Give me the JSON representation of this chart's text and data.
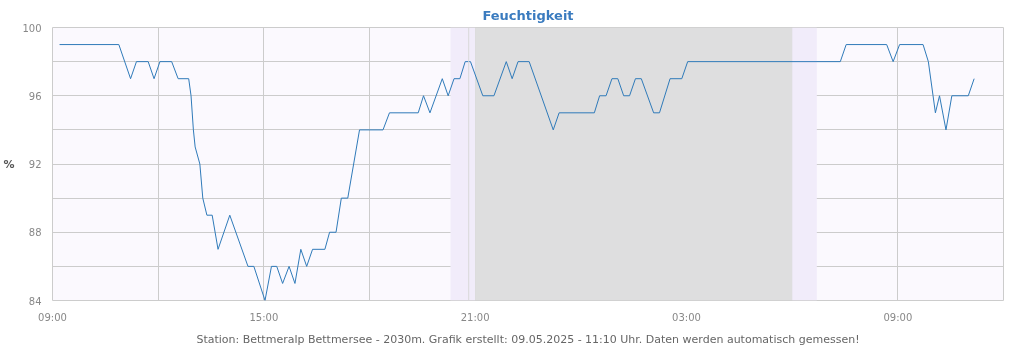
{
  "chart_data": {
    "type": "line",
    "title": "Feuchtigkeit",
    "ylabel": "%",
    "annotations": [
      "Station: Bettmeralp Bettmersee - 2030m. Grafik erstellt: 09.05.2025 - 11:10 Uhr. Daten werden automatisch gemessen!"
    ],
    "series": [
      {
        "color": "#2f7ab9",
        "x": [
          "2025-05-08T09:12",
          "2025-05-08T10:53",
          "2025-05-08T11:13",
          "2025-05-08T11:23",
          "2025-05-08T11:43",
          "2025-05-08T11:53",
          "2025-05-08T12:03",
          "2025-05-08T12:23",
          "2025-05-08T12:34",
          "2025-05-08T12:52",
          "2025-05-08T12:56",
          "2025-05-08T13:00",
          "2025-05-08T13:03",
          "2025-05-08T13:11",
          "2025-05-08T13:16",
          "2025-05-08T13:23",
          "2025-05-08T13:32",
          "2025-05-08T13:42",
          "2025-05-08T14:02",
          "2025-05-08T14:33",
          "2025-05-08T14:43",
          "2025-05-08T15:02",
          "2025-05-08T15:13",
          "2025-05-08T15:22",
          "2025-05-08T15:32",
          "2025-05-08T15:43",
          "2025-05-08T15:53",
          "2025-05-08T16:03",
          "2025-05-08T16:13",
          "2025-05-08T16:23",
          "2025-05-08T16:44",
          "2025-05-08T16:52",
          "2025-05-08T17:03",
          "2025-05-08T17:12",
          "2025-05-08T17:23",
          "2025-05-08T17:33",
          "2025-05-08T17:43",
          "2025-05-08T18:23",
          "2025-05-08T18:34",
          "2025-05-08T19:23",
          "2025-05-08T19:32",
          "2025-05-08T19:43",
          "2025-05-08T20:04",
          "2025-05-08T20:14",
          "2025-05-08T20:24",
          "2025-05-08T20:34",
          "2025-05-08T20:43",
          "2025-05-08T20:52",
          "2025-05-08T21:13",
          "2025-05-08T21:32",
          "2025-05-08T21:53",
          "2025-05-08T22:03",
          "2025-05-08T22:13",
          "2025-05-08T22:32",
          "2025-05-08T23:13",
          "2025-05-08T23:23",
          "2025-05-09T00:23",
          "2025-05-09T00:32",
          "2025-05-09T00:43",
          "2025-05-09T00:53",
          "2025-05-09T01:03",
          "2025-05-09T01:13",
          "2025-05-09T01:23",
          "2025-05-09T01:33",
          "2025-05-09T01:43",
          "2025-05-09T02:04",
          "2025-05-09T02:14",
          "2025-05-09T02:32",
          "2025-05-09T02:52",
          "2025-05-09T03:02",
          "2025-05-09T07:22",
          "2025-05-09T07:32",
          "2025-05-09T08:41",
          "2025-05-09T08:52",
          "2025-05-09T09:03",
          "2025-05-09T09:43",
          "2025-05-09T09:52",
          "2025-05-09T10:00",
          "2025-05-09T10:04",
          "2025-05-09T10:11",
          "2025-05-09T10:22",
          "2025-05-09T10:32",
          "2025-05-09T11:00",
          "2025-05-09T11:10"
        ],
        "values": [
          99,
          99,
          97,
          98,
          98,
          97,
          98,
          98,
          97,
          97,
          96,
          94,
          93,
          92,
          90,
          89,
          89,
          87,
          89,
          86,
          86,
          84,
          86,
          86,
          85,
          86,
          85,
          87,
          86,
          87,
          87,
          88,
          88,
          90,
          90,
          92,
          94,
          94,
          95,
          95,
          96,
          95,
          97,
          96,
          97,
          97,
          98,
          98,
          96,
          96,
          98,
          97,
          98,
          98,
          94,
          95,
          95,
          96,
          96,
          97,
          97,
          96,
          96,
          97,
          97,
          95,
          95,
          97,
          97,
          98,
          98,
          99,
          99,
          98,
          99,
          99,
          98,
          96,
          95,
          96,
          94,
          96,
          96,
          97
        ]
      }
    ],
    "xlim": [
      "2025-05-08T09:00",
      "2025-05-09T12:00"
    ],
    "xticks": [
      {
        "value": "2025-05-08T09:00",
        "label": "09:00"
      },
      {
        "value": "2025-05-08T12:00",
        "label": null
      },
      {
        "value": "2025-05-08T15:00",
        "label": "15:00"
      },
      {
        "value": "2025-05-08T18:00",
        "label": null
      },
      {
        "value": "2025-05-08T21:00",
        "label": "21:00"
      },
      {
        "value": "2025-05-09T00:00",
        "label": null
      },
      {
        "value": "2025-05-09T03:00",
        "label": "03:00"
      },
      {
        "value": "2025-05-09T06:00",
        "label": null
      },
      {
        "value": "2025-05-09T09:00",
        "label": "09:00"
      }
    ],
    "ylim": [
      84,
      100
    ],
    "yticks": [
      84,
      {
        "value": 86,
        "label": null
      },
      88,
      {
        "value": 90,
        "label": null
      },
      92,
      {
        "value": 94,
        "label": null
      },
      96,
      {
        "value": 98,
        "label": null
      },
      100
    ],
    "grid": true,
    "bands": [
      {
        "axis": "x",
        "from": "2025-05-08T20:18",
        "to": "2025-05-08T21:00",
        "color": "#f1ecfa"
      },
      {
        "axis": "x",
        "from": "2025-05-08T21:00",
        "to": "2025-05-09T06:00",
        "color": "#dededf"
      },
      {
        "axis": "x",
        "from": "2025-05-09T06:00",
        "to": "2025-05-09T06:42",
        "color": "#f1ecfa"
      }
    ],
    "ref_lines": [
      {
        "axis": "x",
        "value": "2025-05-08T20:49",
        "color": "#d8d8d8"
      }
    ]
  }
}
